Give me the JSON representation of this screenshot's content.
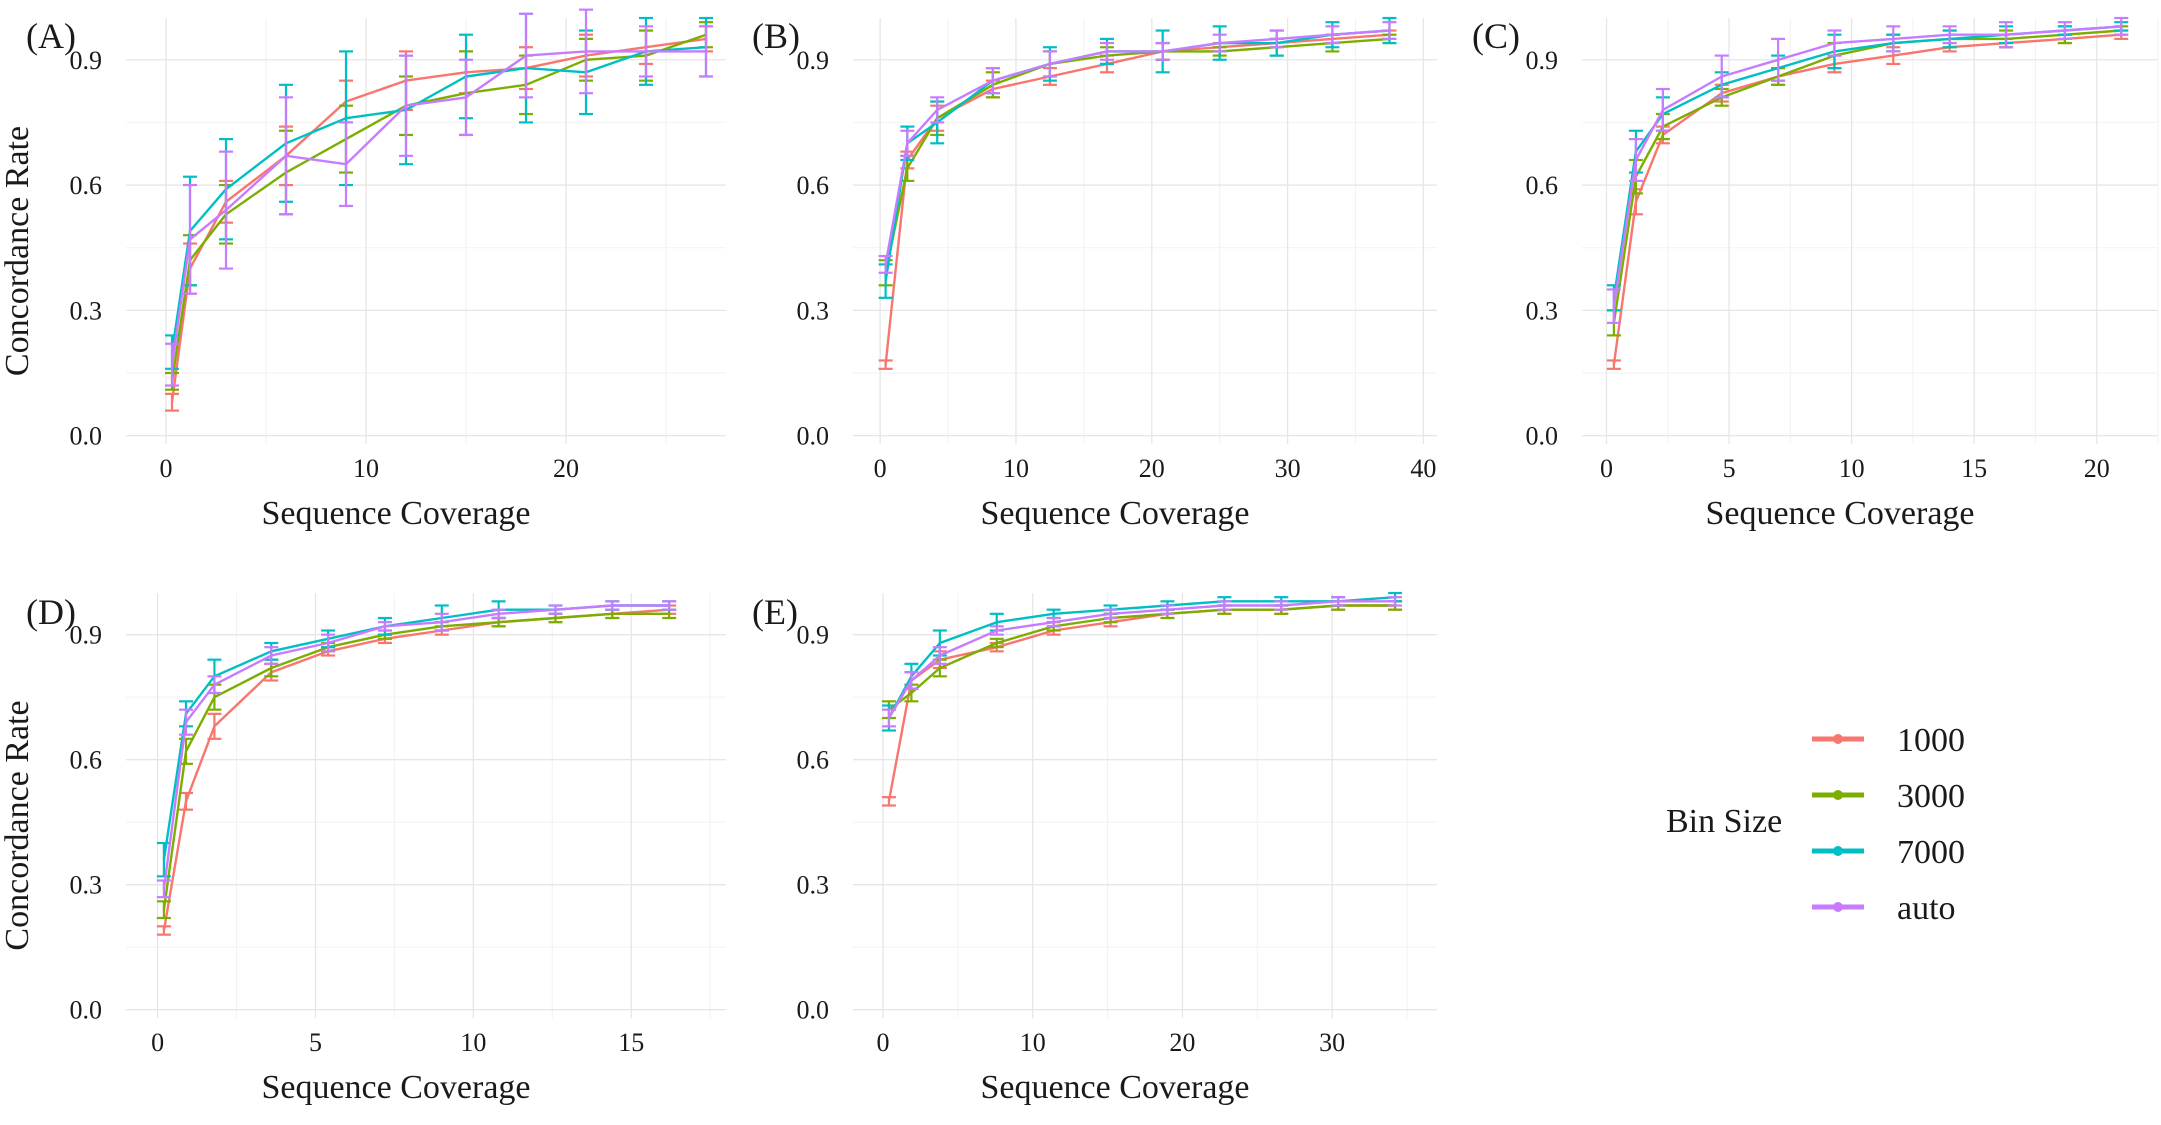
{
  "legend": {
    "title": "Bin Size",
    "entries": [
      "1000",
      "3000",
      "7000",
      "auto"
    ],
    "colors": [
      "#F8766D",
      "#7CAE00",
      "#00BFC4",
      "#C77CFF"
    ]
  },
  "chart_data": [
    {
      "type": "line",
      "panel": "(A)",
      "xlabel": "Sequence Coverage",
      "ylabel": "Concordance Rate",
      "xlim": [
        -2,
        28
      ],
      "ylim": [
        -0.02,
        1.0
      ],
      "xticks": [
        0,
        10,
        20
      ],
      "yticks": [
        0.0,
        0.3,
        0.6,
        0.9
      ],
      "ytick_labels": [
        "0.0",
        "0.3",
        "0.6",
        "0.9"
      ],
      "grid": true,
      "error_bars": true,
      "series": [
        {
          "name": "1000",
          "color": "#F8766D",
          "x": [
            0.3,
            1.2,
            3.0,
            6.0,
            9.0,
            12.0,
            15.0,
            18.0,
            21.0,
            24.0,
            27.0
          ],
          "y": [
            0.08,
            0.4,
            0.56,
            0.67,
            0.8,
            0.85,
            0.87,
            0.88,
            0.91,
            0.93,
            0.95
          ],
          "err": [
            0.02,
            0.06,
            0.05,
            0.07,
            0.05,
            0.07,
            0.05,
            0.05,
            0.05,
            0.04,
            0.03
          ]
        },
        {
          "name": "3000",
          "color": "#7CAE00",
          "x": [
            0.3,
            1.2,
            3.0,
            6.0,
            9.0,
            12.0,
            15.0,
            18.0,
            21.0,
            24.0,
            27.0
          ],
          "y": [
            0.13,
            0.42,
            0.53,
            0.63,
            0.71,
            0.79,
            0.82,
            0.84,
            0.9,
            0.91,
            0.96
          ],
          "err": [
            0.02,
            0.06,
            0.07,
            0.1,
            0.08,
            0.07,
            0.1,
            0.07,
            0.05,
            0.06,
            0.03
          ]
        },
        {
          "name": "7000",
          "color": "#00BFC4",
          "x": [
            0.3,
            1.2,
            3.0,
            6.0,
            9.0,
            12.0,
            15.0,
            18.0,
            21.0,
            24.0,
            27.0
          ],
          "y": [
            0.2,
            0.49,
            0.59,
            0.7,
            0.76,
            0.78,
            0.86,
            0.88,
            0.87,
            0.92,
            0.93
          ],
          "err": [
            0.04,
            0.13,
            0.12,
            0.14,
            0.16,
            0.13,
            0.1,
            0.13,
            0.1,
            0.08,
            0.07
          ]
        },
        {
          "name": "auto",
          "color": "#C77CFF",
          "x": [
            0.3,
            1.2,
            3.0,
            6.0,
            9.0,
            12.0,
            15.0,
            18.0,
            21.0,
            24.0,
            27.0
          ],
          "y": [
            0.17,
            0.47,
            0.54,
            0.67,
            0.65,
            0.79,
            0.81,
            0.91,
            0.92,
            0.92,
            0.92
          ],
          "err": [
            0.05,
            0.13,
            0.14,
            0.14,
            0.1,
            0.12,
            0.09,
            0.1,
            0.1,
            0.06,
            0.06
          ]
        }
      ]
    },
    {
      "type": "line",
      "panel": "(B)",
      "xlabel": "Sequence Coverage",
      "ylabel": "",
      "xlim": [
        -2,
        41
      ],
      "ylim": [
        -0.02,
        1.0
      ],
      "xticks": [
        0,
        10,
        20,
        30,
        40
      ],
      "yticks": [
        0.0,
        0.3,
        0.6,
        0.9
      ],
      "ytick_labels": [
        "0.0",
        "0.3",
        "0.6",
        "0.9"
      ],
      "grid": true,
      "error_bars": true,
      "series": [
        {
          "name": "1000",
          "color": "#F8766D",
          "x": [
            0.4,
            2.0,
            4.2,
            8.3,
            12.5,
            16.7,
            20.8,
            25.0,
            29.2,
            33.3,
            37.5
          ],
          "y": [
            0.17,
            0.66,
            0.76,
            0.83,
            0.86,
            0.89,
            0.92,
            0.93,
            0.94,
            0.95,
            0.96
          ],
          "err": [
            0.01,
            0.02,
            0.03,
            0.02,
            0.02,
            0.02,
            0.02,
            0.01,
            0.01,
            0.01,
            0.01
          ]
        },
        {
          "name": "3000",
          "color": "#7CAE00",
          "x": [
            0.4,
            2.0,
            4.2,
            8.3,
            12.5,
            16.7,
            20.8,
            25.0,
            29.2,
            33.3,
            37.5
          ],
          "y": [
            0.39,
            0.64,
            0.76,
            0.84,
            0.89,
            0.91,
            0.92,
            0.92,
            0.93,
            0.94,
            0.95
          ],
          "err": [
            0.03,
            0.03,
            0.04,
            0.03,
            0.03,
            0.02,
            0.02,
            0.01,
            0.02,
            0.02,
            0.01
          ]
        },
        {
          "name": "7000",
          "color": "#00BFC4",
          "x": [
            0.4,
            2.0,
            4.2,
            8.3,
            12.5,
            16.7,
            20.8,
            25.0,
            29.2,
            33.3,
            37.5
          ],
          "y": [
            0.37,
            0.7,
            0.75,
            0.85,
            0.89,
            0.92,
            0.92,
            0.94,
            0.94,
            0.96,
            0.97
          ],
          "err": [
            0.04,
            0.04,
            0.05,
            0.03,
            0.04,
            0.03,
            0.05,
            0.04,
            0.03,
            0.03,
            0.03
          ]
        },
        {
          "name": "auto",
          "color": "#C77CFF",
          "x": [
            0.4,
            2.0,
            4.2,
            8.3,
            12.5,
            16.7,
            20.8,
            25.0,
            29.2,
            33.3,
            37.5
          ],
          "y": [
            0.41,
            0.7,
            0.78,
            0.85,
            0.89,
            0.92,
            0.92,
            0.94,
            0.95,
            0.96,
            0.97
          ],
          "err": [
            0.02,
            0.03,
            0.03,
            0.03,
            0.03,
            0.02,
            0.02,
            0.02,
            0.02,
            0.02,
            0.02
          ]
        }
      ]
    },
    {
      "type": "line",
      "panel": "(C)",
      "xlabel": "Sequence Coverage",
      "ylabel": "",
      "xlim": [
        -1,
        22.5
      ],
      "ylim": [
        -0.02,
        1.0
      ],
      "xticks": [
        0,
        5,
        10,
        15,
        20
      ],
      "yticks": [
        0.0,
        0.3,
        0.6,
        0.9
      ],
      "ytick_labels": [
        "0.0",
        "0.3",
        "0.6",
        "0.9"
      ],
      "grid": true,
      "error_bars": true,
      "series": [
        {
          "name": "1000",
          "color": "#F8766D",
          "x": [
            0.3,
            1.2,
            2.3,
            4.7,
            7.0,
            9.3,
            11.7,
            14.0,
            16.3,
            18.7,
            21.0
          ],
          "y": [
            0.17,
            0.56,
            0.72,
            0.82,
            0.86,
            0.89,
            0.91,
            0.93,
            0.94,
            0.95,
            0.96
          ],
          "err": [
            0.01,
            0.03,
            0.02,
            0.02,
            0.02,
            0.02,
            0.02,
            0.01,
            0.01,
            0.01,
            0.01
          ]
        },
        {
          "name": "3000",
          "color": "#7CAE00",
          "x": [
            0.3,
            1.2,
            2.3,
            4.7,
            7.0,
            9.3,
            11.7,
            14.0,
            16.3,
            18.7,
            21.0
          ],
          "y": [
            0.27,
            0.62,
            0.74,
            0.81,
            0.86,
            0.91,
            0.94,
            0.95,
            0.95,
            0.96,
            0.97
          ],
          "err": [
            0.03,
            0.04,
            0.03,
            0.02,
            0.02,
            0.03,
            0.02,
            0.02,
            0.02,
            0.02,
            0.01
          ]
        },
        {
          "name": "7000",
          "color": "#00BFC4",
          "x": [
            0.3,
            1.2,
            2.3,
            4.7,
            7.0,
            9.3,
            11.7,
            14.0,
            16.3,
            18.7,
            21.0
          ],
          "y": [
            0.33,
            0.68,
            0.77,
            0.84,
            0.88,
            0.92,
            0.94,
            0.95,
            0.96,
            0.97,
            0.98
          ],
          "err": [
            0.03,
            0.05,
            0.04,
            0.03,
            0.03,
            0.04,
            0.02,
            0.02,
            0.02,
            0.01,
            0.01
          ]
        },
        {
          "name": "auto",
          "color": "#C77CFF",
          "x": [
            0.3,
            1.2,
            2.3,
            4.7,
            7.0,
            9.3,
            11.7,
            14.0,
            16.3,
            18.7,
            21.0
          ],
          "y": [
            0.31,
            0.66,
            0.78,
            0.86,
            0.9,
            0.94,
            0.95,
            0.96,
            0.96,
            0.97,
            0.98
          ],
          "err": [
            0.04,
            0.05,
            0.05,
            0.05,
            0.05,
            0.03,
            0.03,
            0.02,
            0.03,
            0.02,
            0.02
          ]
        }
      ]
    },
    {
      "type": "line",
      "panel": "(D)",
      "xlabel": "Sequence Coverage",
      "ylabel": "Concordance Rate",
      "xlim": [
        -1,
        18
      ],
      "ylim": [
        -0.02,
        1.0
      ],
      "xticks": [
        0,
        5,
        10,
        15
      ],
      "yticks": [
        0.0,
        0.3,
        0.6,
        0.9
      ],
      "ytick_labels": [
        "0.0",
        "0.3",
        "0.6",
        "0.9"
      ],
      "grid": true,
      "error_bars": true,
      "series": [
        {
          "name": "1000",
          "color": "#F8766D",
          "x": [
            0.2,
            0.9,
            1.8,
            3.6,
            5.4,
            7.2,
            9.0,
            10.8,
            12.6,
            14.4,
            16.2
          ],
          "y": [
            0.19,
            0.5,
            0.68,
            0.81,
            0.86,
            0.89,
            0.91,
            0.93,
            0.94,
            0.95,
            0.96
          ],
          "err": [
            0.01,
            0.02,
            0.03,
            0.02,
            0.01,
            0.01,
            0.01,
            0.01,
            0.01,
            0.01,
            0.01
          ]
        },
        {
          "name": "3000",
          "color": "#7CAE00",
          "x": [
            0.2,
            0.9,
            1.8,
            3.6,
            5.4,
            7.2,
            9.0,
            10.8,
            12.6,
            14.4,
            16.2
          ],
          "y": [
            0.24,
            0.62,
            0.75,
            0.82,
            0.87,
            0.9,
            0.92,
            0.93,
            0.94,
            0.95,
            0.95
          ],
          "err": [
            0.02,
            0.03,
            0.03,
            0.02,
            0.01,
            0.01,
            0.01,
            0.01,
            0.01,
            0.01,
            0.01
          ]
        },
        {
          "name": "7000",
          "color": "#00BFC4",
          "x": [
            0.2,
            0.9,
            1.8,
            3.6,
            5.4,
            7.2,
            9.0,
            10.8,
            12.6,
            14.4,
            16.2
          ],
          "y": [
            0.36,
            0.71,
            0.8,
            0.86,
            0.89,
            0.92,
            0.94,
            0.96,
            0.96,
            0.97,
            0.97
          ],
          "err": [
            0.04,
            0.03,
            0.04,
            0.02,
            0.02,
            0.02,
            0.03,
            0.02,
            0.01,
            0.01,
            0.01
          ]
        },
        {
          "name": "auto",
          "color": "#C77CFF",
          "x": [
            0.2,
            0.9,
            1.8,
            3.6,
            5.4,
            7.2,
            9.0,
            10.8,
            12.6,
            14.4,
            16.2
          ],
          "y": [
            0.29,
            0.69,
            0.78,
            0.85,
            0.88,
            0.92,
            0.93,
            0.95,
            0.96,
            0.97,
            0.97
          ],
          "err": [
            0.02,
            0.03,
            0.02,
            0.02,
            0.02,
            0.01,
            0.02,
            0.01,
            0.01,
            0.01,
            0.01
          ]
        }
      ]
    },
    {
      "type": "line",
      "panel": "(E)",
      "xlabel": "Sequence Coverage",
      "ylabel": "",
      "xlim": [
        -2,
        37
      ],
      "ylim": [
        -0.02,
        1.0
      ],
      "xticks": [
        0,
        10,
        20,
        30
      ],
      "yticks": [
        0.0,
        0.3,
        0.6,
        0.9
      ],
      "ytick_labels": [
        "0.0",
        "0.3",
        "0.6",
        "0.9"
      ],
      "grid": true,
      "error_bars": true,
      "series": [
        {
          "name": "1000",
          "color": "#F8766D",
          "x": [
            0.4,
            1.9,
            3.8,
            7.6,
            11.4,
            15.2,
            19.0,
            22.8,
            26.6,
            30.4,
            34.2
          ],
          "y": [
            0.5,
            0.79,
            0.84,
            0.87,
            0.91,
            0.93,
            0.95,
            0.96,
            0.96,
            0.97,
            0.97
          ],
          "err": [
            0.01,
            0.02,
            0.02,
            0.01,
            0.01,
            0.01,
            0.01,
            0.01,
            0.01,
            0.01,
            0.01
          ]
        },
        {
          "name": "3000",
          "color": "#7CAE00",
          "x": [
            0.4,
            1.9,
            3.8,
            7.6,
            11.4,
            15.2,
            19.0,
            22.8,
            26.6,
            30.4,
            34.2
          ],
          "y": [
            0.72,
            0.76,
            0.82,
            0.88,
            0.92,
            0.94,
            0.95,
            0.96,
            0.96,
            0.97,
            0.97
          ],
          "err": [
            0.02,
            0.02,
            0.02,
            0.01,
            0.01,
            0.01,
            0.01,
            0.01,
            0.01,
            0.01,
            0.01
          ]
        },
        {
          "name": "7000",
          "color": "#00BFC4",
          "x": [
            0.4,
            1.9,
            3.8,
            7.6,
            11.4,
            15.2,
            19.0,
            22.8,
            26.6,
            30.4,
            34.2
          ],
          "y": [
            0.7,
            0.8,
            0.88,
            0.93,
            0.95,
            0.96,
            0.97,
            0.98,
            0.98,
            0.98,
            0.99
          ],
          "err": [
            0.03,
            0.03,
            0.03,
            0.02,
            0.01,
            0.01,
            0.01,
            0.01,
            0.01,
            0.01,
            0.01
          ]
        },
        {
          "name": "auto",
          "color": "#C77CFF",
          "x": [
            0.4,
            1.9,
            3.8,
            7.6,
            11.4,
            15.2,
            19.0,
            22.8,
            26.6,
            30.4,
            34.2
          ],
          "y": [
            0.7,
            0.79,
            0.85,
            0.91,
            0.93,
            0.95,
            0.96,
            0.97,
            0.97,
            0.98,
            0.98
          ],
          "err": [
            0.02,
            0.02,
            0.02,
            0.01,
            0.01,
            0.01,
            0.01,
            0.01,
            0.01,
            0.01,
            0.01
          ]
        }
      ]
    }
  ]
}
